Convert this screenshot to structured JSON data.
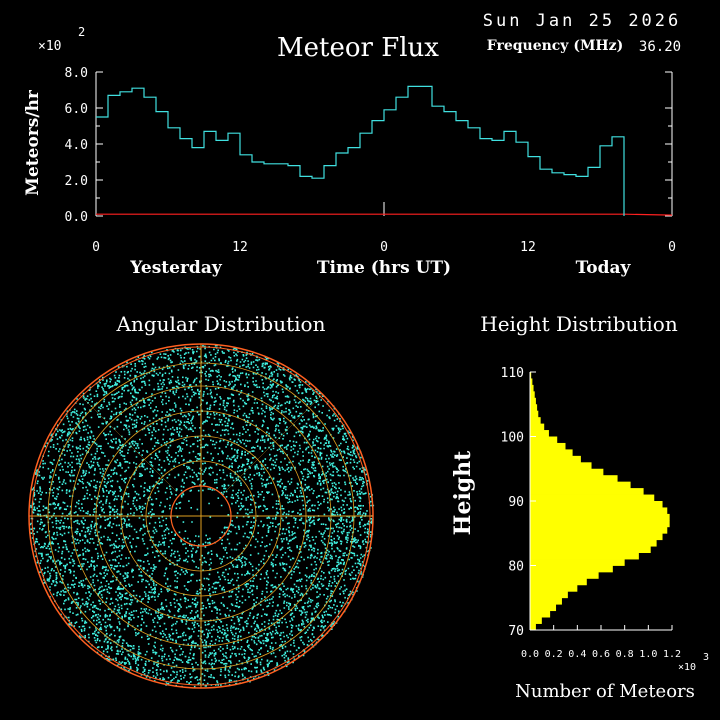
{
  "header": {
    "date": "Sun Jan 25 2026",
    "title": "Meteor Flux",
    "frequency_label": "Frequency (MHz)",
    "frequency_value": "36.20",
    "scale_multiplier": "×10",
    "scale_exponent": "2"
  },
  "colors": {
    "flux_line": "#40e0e0",
    "baseline": "#ff2020",
    "angular_points": "#40f0e0",
    "angular_grid": "#e0a020",
    "angular_rings": "#ff6020",
    "height_bars": "#ffff00",
    "axes": "#ffffff"
  },
  "chart_data": [
    {
      "type": "line",
      "name": "meteor-flux",
      "ylabel": "Meteors/hr",
      "xlabel": "Time (hrs UT)",
      "ylim": [
        0,
        8.0
      ],
      "y_ticks": [
        "0.0",
        "2.0",
        "4.0",
        "6.0",
        "8.0"
      ],
      "x_ticks": [
        "0",
        "12",
        "0",
        "12",
        "0"
      ],
      "x_day_labels": [
        "Yesterday",
        "Today"
      ],
      "hours_per_step": 1,
      "series": [
        {
          "values": [
            5.5,
            6.7,
            6.9,
            7.1,
            6.6,
            5.8,
            4.9,
            4.3,
            3.8,
            4.7,
            4.2,
            4.6,
            3.4,
            3.0,
            2.9,
            2.9,
            2.8,
            2.2,
            2.1,
            2.8,
            3.5,
            3.8,
            4.6,
            5.3,
            5.9,
            6.6,
            7.2,
            7.2,
            6.1,
            5.8,
            5.3,
            4.9,
            4.3,
            4.2,
            4.7,
            4.1,
            3.3,
            2.6,
            2.4,
            2.3,
            2.2,
            2.7,
            3.9,
            4.4
          ]
        }
      ],
      "baseline_values": [
        0.1,
        0.1,
        0.1,
        0.1,
        0.1,
        0.1,
        0.1,
        0.1,
        0.1,
        0.1,
        0.1,
        0.1,
        0.1,
        0.1,
        0.1,
        0.1,
        0.1,
        0.1,
        0.1,
        0.1,
        0.1,
        0.1,
        0.1,
        0.1,
        0.1,
        0.1,
        0.1,
        0.1,
        0.1,
        0.1,
        0.1,
        0.1,
        0.1,
        0.1,
        0.1,
        0.1,
        0.1,
        0.1,
        0.1,
        0.1,
        0.1,
        0.1,
        0.1,
        0.1
      ]
    },
    {
      "type": "scatter",
      "name": "angular-distribution",
      "title": "Angular Distribution",
      "projection": "polar sky plot"
    },
    {
      "type": "bar",
      "name": "height-distribution",
      "title": "Height Distribution",
      "ylabel": "Height",
      "xlabel": "Number of Meteors",
      "x_multiplier": "×10",
      "x_exponent": "3",
      "x_ticks": [
        "0.0",
        "0.2",
        "0.4",
        "0.6",
        "0.8",
        "1.0",
        "1.2"
      ],
      "xlim": [
        0,
        1.2
      ],
      "y_ticks": [
        "70",
        "80",
        "90",
        "100",
        "110"
      ],
      "ylim": [
        70,
        110
      ],
      "heights": [
        70,
        71,
        72,
        73,
        74,
        75,
        76,
        77,
        78,
        79,
        80,
        81,
        82,
        83,
        84,
        85,
        86,
        87,
        88,
        89,
        90,
        91,
        92,
        93,
        94,
        95,
        96,
        97,
        98,
        99,
        100,
        101,
        102,
        103,
        104,
        105,
        106,
        107,
        108,
        109
      ],
      "values": [
        0.05,
        0.1,
        0.17,
        0.22,
        0.27,
        0.32,
        0.4,
        0.48,
        0.58,
        0.7,
        0.8,
        0.92,
        1.02,
        1.07,
        1.12,
        1.16,
        1.18,
        1.18,
        1.16,
        1.12,
        1.05,
        0.96,
        0.85,
        0.74,
        0.62,
        0.52,
        0.43,
        0.36,
        0.3,
        0.23,
        0.16,
        0.12,
        0.09,
        0.07,
        0.06,
        0.05,
        0.04,
        0.03,
        0.02,
        0.01
      ]
    }
  ]
}
